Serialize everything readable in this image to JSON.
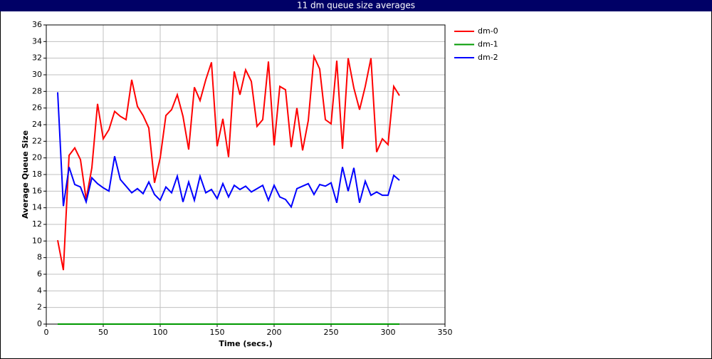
{
  "chart_data": {
    "type": "line",
    "title": "11 dm queue size averages",
    "x_label": "Time (secs.)",
    "y_label": "Average Queue Size",
    "x": [
      10,
      15,
      20,
      25,
      30,
      35,
      40,
      45,
      50,
      55,
      60,
      65,
      70,
      75,
      80,
      85,
      90,
      95,
      100,
      105,
      110,
      115,
      120,
      125,
      130,
      135,
      140,
      145,
      150,
      155,
      160,
      165,
      170,
      175,
      180,
      185,
      190,
      195,
      200,
      205,
      210,
      215,
      220,
      225,
      230,
      235,
      240,
      245,
      250,
      255,
      260,
      265,
      270,
      275,
      280,
      285,
      290,
      295,
      300,
      305,
      310
    ],
    "series": [
      {
        "name": "dm-0",
        "color": "#ff0000",
        "values": [
          10.1,
          6.5,
          20.3,
          21.2,
          19.8,
          15.0,
          18.8,
          26.5,
          22.3,
          23.4,
          25.6,
          25.0,
          24.6,
          29.4,
          26.2,
          25.1,
          23.6,
          17.0,
          20.0,
          25.1,
          25.8,
          27.6,
          25.0,
          21.0,
          28.5,
          26.9,
          29.4,
          31.5,
          21.4,
          24.7,
          20.1,
          30.4,
          27.6,
          30.6,
          29.2,
          23.8,
          24.6,
          31.6,
          21.5,
          28.6,
          28.2,
          21.3,
          26.0,
          20.9,
          24.5,
          32.2,
          30.7,
          24.6,
          24.1,
          31.7,
          21.1,
          32.0,
          28.4,
          25.8,
          28.6,
          32.0,
          20.7,
          22.3,
          21.6,
          28.6,
          27.5
        ]
      },
      {
        "name": "dm-1",
        "color": "#009900",
        "values": [
          0,
          0,
          0,
          0,
          0,
          0,
          0,
          0,
          0,
          0,
          0,
          0,
          0,
          0,
          0,
          0,
          0,
          0,
          0,
          0,
          0,
          0,
          0,
          0,
          0,
          0,
          0,
          0,
          0,
          0,
          0,
          0,
          0,
          0,
          0,
          0,
          0,
          0,
          0,
          0,
          0,
          0,
          0,
          0,
          0,
          0,
          0,
          0,
          0,
          0,
          0,
          0,
          0,
          0,
          0,
          0,
          0,
          0,
          0,
          0,
          0
        ]
      },
      {
        "name": "dm-2",
        "color": "#0000ff",
        "values": [
          27.9,
          14.2,
          18.9,
          16.8,
          16.5,
          14.7,
          17.6,
          16.9,
          16.4,
          16.0,
          20.2,
          17.4,
          16.6,
          15.8,
          16.3,
          15.7,
          17.1,
          15.6,
          14.9,
          16.5,
          15.8,
          17.8,
          14.7,
          17.1,
          14.9,
          17.8,
          15.8,
          16.2,
          15.1,
          16.9,
          15.3,
          16.7,
          16.2,
          16.6,
          15.9,
          16.3,
          16.7,
          14.9,
          16.7,
          15.3,
          15.0,
          14.1,
          16.3,
          16.6,
          16.9,
          15.6,
          16.8,
          16.6,
          17.0,
          14.6,
          18.9,
          16.0,
          18.8,
          14.6,
          17.2,
          15.5,
          15.9,
          15.5,
          15.5,
          17.9,
          17.3
        ]
      }
    ],
    "xlim": [
      0,
      350
    ],
    "xticks": [
      0,
      50,
      100,
      150,
      200,
      250,
      300,
      350
    ],
    "ylim": [
      0,
      36
    ],
    "yticks": [
      0,
      2,
      4,
      6,
      8,
      10,
      12,
      14,
      16,
      18,
      20,
      22,
      24,
      26,
      28,
      30,
      32,
      34,
      36
    ],
    "grid": true,
    "legend": "right"
  }
}
